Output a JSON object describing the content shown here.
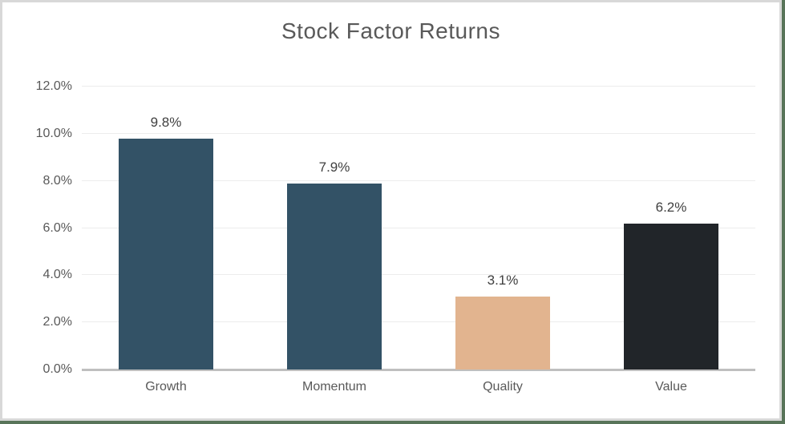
{
  "window": {
    "backdrop_color": "#587459",
    "frame_border_color": "#d8d8d8",
    "background_color": "#ffffff"
  },
  "chart_data": {
    "type": "bar",
    "title": "Stock Factor Returns",
    "categories": [
      "Growth",
      "Momentum",
      "Quality",
      "Value"
    ],
    "values": [
      9.8,
      7.9,
      3.1,
      6.2
    ],
    "data_labels": [
      "9.8%",
      "7.9%",
      "3.1%",
      "6.2%"
    ],
    "bar_colors": [
      "#335266",
      "#335266",
      "#e2b48f",
      "#212529"
    ],
    "xlabel": "",
    "ylabel": "",
    "y_axis": {
      "min": 0,
      "max": 12,
      "step": 2,
      "tick_labels": [
        "0.0%",
        "2.0%",
        "4.0%",
        "6.0%",
        "8.0%",
        "10.0%",
        "12.0%"
      ]
    },
    "grid": true,
    "legend": "none",
    "styles": {
      "title_color": "#595959",
      "data_label_color": "#404040",
      "axis_text_color": "#595959",
      "gridline_color": "#ececec",
      "baseline_color": "#bfbfbf"
    }
  }
}
